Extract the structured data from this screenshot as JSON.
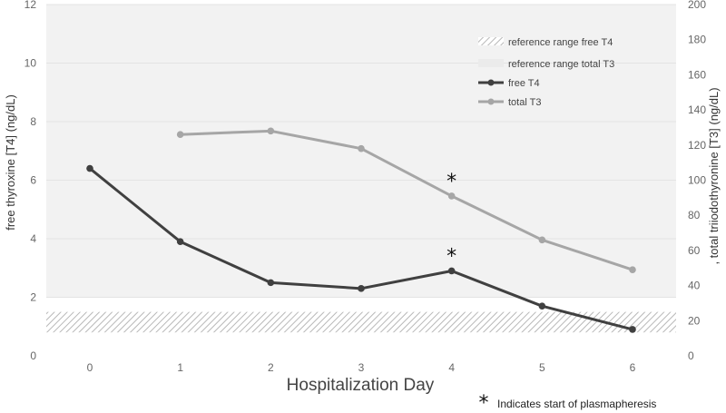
{
  "chart_data": {
    "type": "line",
    "xlabel": "Hospitalization Day",
    "ylabel_left": "free thyroxine [T4] (ng/dL)",
    "ylabel_right": ", total triiodothyronine [T3] (ng/dL)",
    "x": [
      0,
      1,
      2,
      3,
      4,
      5,
      6
    ],
    "x_tick_labels": [
      "0",
      "1",
      "2",
      "3",
      "4",
      "5",
      "6"
    ],
    "ylim_left": [
      0,
      12
    ],
    "yticks_left": [
      "0",
      "2",
      "4",
      "6",
      "8",
      "10",
      "12"
    ],
    "ylim_right": [
      0,
      200
    ],
    "yticks_right": [
      "0",
      "20",
      "40",
      "60",
      "80",
      "100",
      "120",
      "140",
      "160",
      "180",
      "200"
    ],
    "series": [
      {
        "name": "free T4",
        "axis": "left",
        "color": "#404040",
        "points": [
          [
            0,
            6.4
          ],
          [
            1,
            3.9
          ],
          [
            2,
            2.5
          ],
          [
            3,
            2.3
          ],
          [
            4,
            2.9
          ],
          [
            5,
            1.7
          ],
          [
            6,
            0.9
          ]
        ]
      },
      {
        "name": "total T3",
        "axis": "right",
        "color": "#a6a6a6",
        "points": [
          [
            1,
            126
          ],
          [
            2,
            128
          ],
          [
            3,
            118
          ],
          [
            4,
            91
          ],
          [
            5,
            66
          ],
          [
            6,
            49
          ]
        ]
      }
    ],
    "reference_ranges": [
      {
        "name": "reference range free T4",
        "axis": "left",
        "low": 0.8,
        "high": 1.5,
        "pattern": "hatched"
      },
      {
        "name": "reference range total T3",
        "axis": "right",
        "low": 33,
        "high": 200,
        "pattern": "light-fill"
      }
    ],
    "annotations": [
      {
        "series": "free T4",
        "x": 4,
        "symbol": "*"
      },
      {
        "series": "total T3",
        "x": 4,
        "symbol": "*"
      }
    ],
    "legend": [
      {
        "label": "reference range free T4",
        "kind": "hatch"
      },
      {
        "label": "reference range total T3",
        "kind": "fill"
      },
      {
        "label": "free T4",
        "kind": "line",
        "color": "#404040"
      },
      {
        "label": "total T3",
        "kind": "line",
        "color": "#a6a6a6"
      }
    ],
    "legend_position": "top-right",
    "footnote": {
      "symbol": "*",
      "text": "Indicates start of plasmapheresis"
    }
  }
}
